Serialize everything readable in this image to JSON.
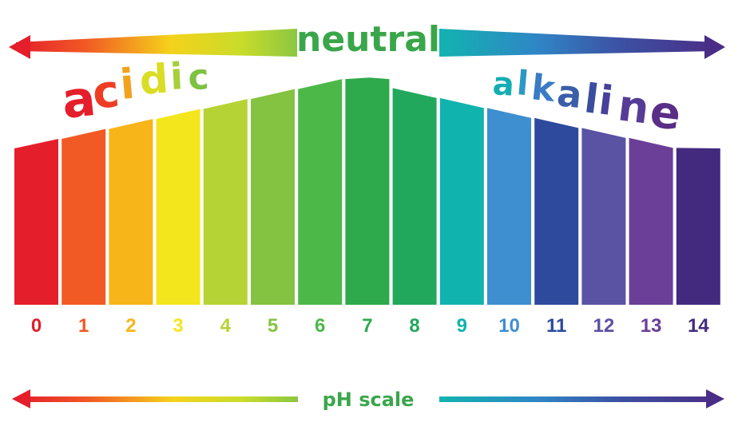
{
  "top_label": "neutral",
  "left_word": [
    "a",
    "c",
    "i",
    "d",
    "i",
    "c"
  ],
  "right_word": [
    "a",
    "l",
    "k",
    "a",
    "l",
    "i",
    "n",
    "e"
  ],
  "bottom_label": "pH scale",
  "scale": {
    "numbers": [
      "0",
      "1",
      "2",
      "3",
      "4",
      "5",
      "6",
      "7",
      "8",
      "9",
      "10",
      "11",
      "12",
      "13",
      "14"
    ],
    "levels": [
      0,
      1,
      2,
      3,
      4,
      5,
      6,
      7,
      6,
      5,
      4,
      3,
      2,
      1,
      0
    ],
    "colors": [
      "#e41e2b",
      "#f15a24",
      "#f7b519",
      "#f3e61c",
      "#b5d334",
      "#84c341",
      "#4cb848",
      "#2ea94c",
      "#22a85c",
      "#10b3ad",
      "#3e8fd0",
      "#2e4a9d",
      "#5a52a3",
      "#6b3e98",
      "#432a7f"
    ]
  },
  "left_word_colors": [
    "#e41e2b",
    "#ee3d24",
    "#f2a21f",
    "#d9dd24",
    "#a8cf3a",
    "#7fc142"
  ],
  "right_word_colors": [
    "#14aeb2",
    "#2a99c6",
    "#3b7bc5",
    "#3a5ea9",
    "#3a4d9f",
    "#47419a",
    "#563c96",
    "#5a2d86"
  ],
  "neutral_color": "#3aa64a",
  "ph_scale_color": "#3aa64a"
}
